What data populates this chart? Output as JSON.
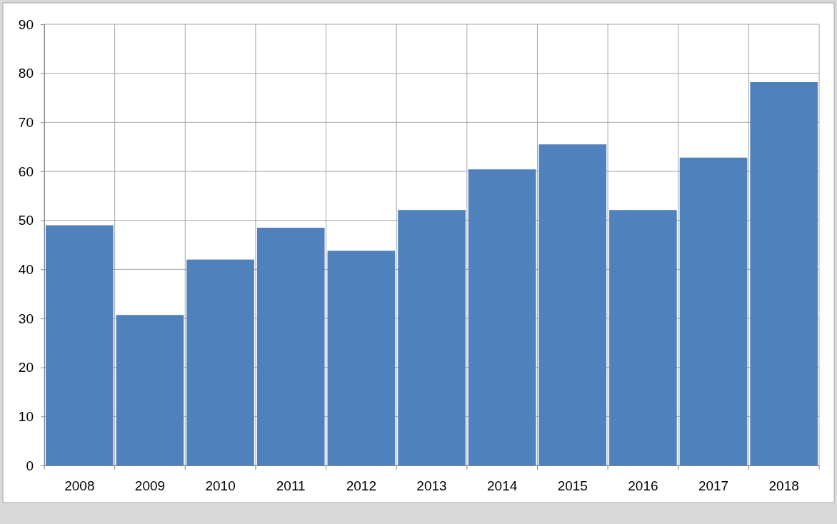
{
  "chart_data": {
    "type": "bar",
    "categories": [
      "2008",
      "2009",
      "2010",
      "2011",
      "2012",
      "2013",
      "2014",
      "2015",
      "2016",
      "2017",
      "2018"
    ],
    "values": [
      49,
      30.7,
      42,
      48.5,
      43.8,
      52.1,
      60.4,
      65.5,
      52.1,
      62.8,
      78.2
    ],
    "color": "#4f81bd",
    "ylim": [
      0,
      90
    ],
    "yticks": [
      0,
      10,
      20,
      30,
      40,
      50,
      60,
      70,
      80,
      90
    ],
    "grid": true
  }
}
